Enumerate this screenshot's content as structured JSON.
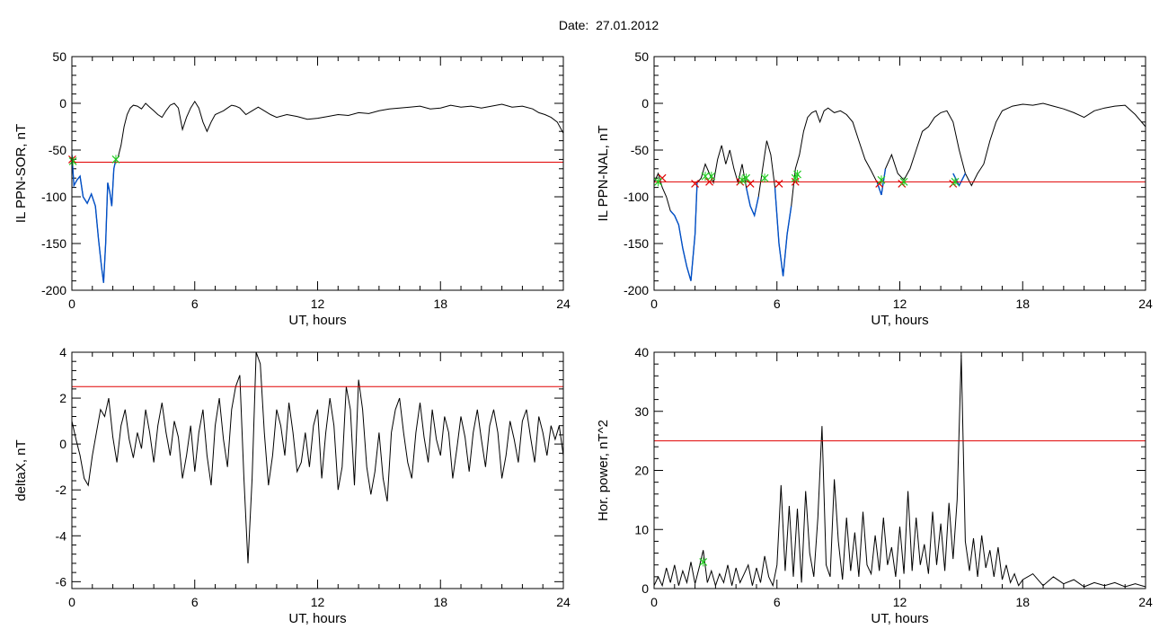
{
  "title": "Date:  27.01.2012",
  "chart_data": [
    {
      "type": "line",
      "title": "",
      "xlabel": "UT, hours",
      "ylabel": "IL PPN-SOR, nT",
      "xlim": [
        0,
        24
      ],
      "ylim": [
        -200,
        50
      ],
      "xticks": [
        0,
        6,
        12,
        18,
        24
      ],
      "yticks": [
        -200,
        -150,
        -100,
        -50,
        0,
        50
      ],
      "threshold": -63,
      "series": [
        {
          "color": "#000000",
          "x": [
            0,
            0.1,
            0.25,
            0.4,
            0.55,
            0.75,
            0.95,
            1.15,
            1.3,
            1.45,
            1.55,
            1.65,
            1.75,
            1.85,
            1.95,
            2.05,
            2.15,
            2.25,
            2.4,
            2.55,
            2.7,
            2.85,
            3.0,
            3.2,
            3.4,
            3.6,
            3.8,
            4.0,
            4.2,
            4.4,
            4.6,
            4.8,
            5.0,
            5.2,
            5.4,
            5.6,
            5.8,
            6.0,
            6.2,
            6.4,
            6.6,
            6.8,
            7.0,
            7.2,
            7.4,
            7.6,
            7.8,
            8.0,
            8.2,
            8.5,
            8.8,
            9.1,
            9.4,
            9.7,
            10.0,
            10.5,
            11.0,
            11.5,
            12.0,
            12.5,
            13.0,
            13.5,
            14.0,
            14.5,
            15.0,
            15.5,
            16.0,
            16.5,
            17.0,
            17.5,
            18.0,
            18.5,
            19.0,
            19.5,
            20.0,
            20.5,
            21.0,
            21.5,
            22.0,
            22.5,
            22.8,
            23.1,
            23.4,
            23.7,
            24.0
          ],
          "y": [
            -55,
            -88,
            -82,
            -78,
            -100,
            -107,
            -97,
            -110,
            -145,
            -175,
            -192,
            -150,
            -85,
            -95,
            -110,
            -70,
            -60,
            -58,
            -45,
            -25,
            -12,
            -5,
            -2,
            -3,
            -6,
            0,
            -4,
            -8,
            -12,
            -15,
            -8,
            -2,
            0,
            -5,
            -28,
            -15,
            -5,
            2,
            -5,
            -20,
            -30,
            -20,
            -12,
            -10,
            -8,
            -5,
            -2,
            -3,
            -5,
            -12,
            -8,
            -4,
            -8,
            -12,
            -15,
            -12,
            -14,
            -17,
            -16,
            -14,
            -12,
            -13,
            -10,
            -11,
            -8,
            -6,
            -5,
            -4,
            -3,
            -6,
            -5,
            -2,
            -4,
            -3,
            -5,
            -3,
            -1,
            -4,
            -3,
            -6,
            -10,
            -12,
            -15,
            -20,
            -32
          ]
        },
        {
          "color": "#0050c8",
          "x": [
            0,
            0.1,
            0.25,
            0.4,
            0.55,
            0.75,
            0.95,
            1.15,
            1.3,
            1.45,
            1.55,
            1.65,
            1.75,
            1.85,
            1.95,
            2.05,
            2.15
          ],
          "y": [
            -55,
            -88,
            -82,
            -78,
            -100,
            -107,
            -97,
            -110,
            -145,
            -175,
            -192,
            -150,
            -85,
            -95,
            -110,
            -70,
            -60
          ]
        }
      ],
      "markers_green": [
        [
          0.05,
          -62
        ],
        [
          2.15,
          -60
        ]
      ],
      "markers_red": [
        [
          0.02,
          -60
        ]
      ]
    },
    {
      "type": "line",
      "title": "",
      "xlabel": "UT, hours",
      "ylabel": "IL PPN-NAL, nT",
      "xlim": [
        0,
        24
      ],
      "ylim": [
        -200,
        50
      ],
      "xticks": [
        0,
        6,
        12,
        18,
        24
      ],
      "yticks": [
        -200,
        -150,
        -100,
        -50,
        0,
        50
      ],
      "threshold": -84,
      "series": [
        {
          "color": "#000000",
          "x": [
            0,
            0.2,
            0.4,
            0.6,
            0.8,
            1.0,
            1.2,
            1.4,
            1.6,
            1.8,
            1.9,
            2.0,
            2.1,
            2.3,
            2.5,
            2.7,
            2.9,
            3.1,
            3.3,
            3.5,
            3.7,
            3.9,
            4.1,
            4.3,
            4.5,
            4.7,
            4.9,
            5.1,
            5.3,
            5.5,
            5.7,
            5.9,
            6.1,
            6.3,
            6.5,
            6.7,
            6.9,
            7.1,
            7.3,
            7.5,
            7.7,
            7.9,
            8.1,
            8.3,
            8.5,
            8.8,
            9.1,
            9.4,
            9.7,
            10.0,
            10.3,
            10.6,
            10.9,
            11.1,
            11.3,
            11.6,
            11.9,
            12.2,
            12.5,
            12.8,
            13.1,
            13.4,
            13.7,
            14.0,
            14.3,
            14.6,
            14.9,
            15.2,
            15.5,
            15.8,
            16.1,
            16.4,
            16.7,
            17.0,
            17.5,
            18.0,
            18.5,
            19.0,
            19.5,
            20.0,
            20.5,
            21.0,
            21.5,
            22.0,
            22.5,
            23.0,
            23.5,
            24.0
          ],
          "y": [
            -85,
            -75,
            -90,
            -100,
            -115,
            -120,
            -130,
            -155,
            -175,
            -190,
            -165,
            -140,
            -85,
            -80,
            -65,
            -75,
            -85,
            -60,
            -45,
            -65,
            -50,
            -70,
            -85,
            -65,
            -90,
            -110,
            -120,
            -100,
            -70,
            -40,
            -55,
            -90,
            -150,
            -185,
            -140,
            -110,
            -70,
            -55,
            -30,
            -15,
            -10,
            -8,
            -20,
            -8,
            -5,
            -10,
            -8,
            -12,
            -20,
            -40,
            -60,
            -72,
            -85,
            -98,
            -70,
            -55,
            -75,
            -82,
            -70,
            -50,
            -30,
            -25,
            -15,
            -10,
            -8,
            -20,
            -50,
            -75,
            -88,
            -75,
            -65,
            -40,
            -20,
            -8,
            -3,
            -1,
            -2,
            0,
            -3,
            -6,
            -10,
            -15,
            -8,
            -5,
            -3,
            -2,
            -12,
            -25
          ]
        },
        {
          "color": "#0050c8",
          "x": [
            0.8,
            1.0,
            1.2,
            1.4,
            1.6,
            1.8,
            1.9,
            2.0,
            2.1
          ],
          "y": [
            -115,
            -120,
            -130,
            -155,
            -175,
            -190,
            -165,
            -140,
            -85
          ]
        },
        {
          "color": "#0050c8",
          "x": [
            4.5,
            4.7,
            4.9,
            5.1
          ],
          "y": [
            -90,
            -110,
            -120,
            -100
          ]
        },
        {
          "color": "#0050c8",
          "x": [
            5.9,
            6.1,
            6.3,
            6.5,
            6.7
          ],
          "y": [
            -90,
            -150,
            -185,
            -140,
            -110
          ]
        },
        {
          "color": "#0050c8",
          "x": [
            10.9,
            11.1,
            11.3
          ],
          "y": [
            -85,
            -98,
            -70
          ]
        },
        {
          "color": "#0050c8",
          "x": [
            14.6,
            14.9,
            15.2
          ],
          "y": [
            -75,
            -88,
            -75
          ]
        }
      ],
      "markers_green": [
        [
          0.2,
          -84
        ],
        [
          2.5,
          -78
        ],
        [
          2.8,
          -78
        ],
        [
          4.3,
          -82
        ],
        [
          4.5,
          -80
        ],
        [
          5.4,
          -80
        ],
        [
          6.9,
          -80
        ],
        [
          7.0,
          -76
        ],
        [
          11.1,
          -82
        ],
        [
          12.2,
          -84
        ],
        [
          14.7,
          -84
        ]
      ],
      "markers_red": [
        [
          0.4,
          -80
        ],
        [
          2.0,
          -86
        ],
        [
          2.7,
          -84
        ],
        [
          4.2,
          -84
        ],
        [
          4.7,
          -86
        ],
        [
          6.1,
          -86
        ],
        [
          6.9,
          -84
        ],
        [
          11.0,
          -86
        ],
        [
          12.1,
          -86
        ],
        [
          14.6,
          -86
        ]
      ]
    },
    {
      "type": "line",
      "title": "",
      "xlabel": "UT, hours",
      "ylabel": "deltaX, nT",
      "xlim": [
        0,
        24
      ],
      "ylim": [
        -6.3,
        4
      ],
      "xticks": [
        0,
        6,
        12,
        18,
        24
      ],
      "yticks": [
        -6,
        -4,
        -2,
        0,
        2,
        4
      ],
      "threshold": 2.5,
      "series": [
        {
          "color": "#000000",
          "x": [
            0,
            0.2,
            0.4,
            0.6,
            0.8,
            1.0,
            1.2,
            1.4,
            1.6,
            1.8,
            2.0,
            2.2,
            2.4,
            2.6,
            2.8,
            3.0,
            3.2,
            3.4,
            3.6,
            3.8,
            4.0,
            4.2,
            4.4,
            4.6,
            4.8,
            5.0,
            5.2,
            5.4,
            5.6,
            5.8,
            6.0,
            6.2,
            6.4,
            6.6,
            6.8,
            7.0,
            7.2,
            7.4,
            7.6,
            7.8,
            8.0,
            8.2,
            8.4,
            8.6,
            8.8,
            9.0,
            9.2,
            9.4,
            9.6,
            9.8,
            10.0,
            10.2,
            10.4,
            10.6,
            10.8,
            11.0,
            11.2,
            11.4,
            11.6,
            11.8,
            12.0,
            12.2,
            12.4,
            12.6,
            12.8,
            13.0,
            13.2,
            13.4,
            13.6,
            13.8,
            14.0,
            14.2,
            14.4,
            14.6,
            14.8,
            15.0,
            15.2,
            15.4,
            15.6,
            15.8,
            16.0,
            16.2,
            16.4,
            16.6,
            16.8,
            17.0,
            17.2,
            17.4,
            17.6,
            17.8,
            18.0,
            18.2,
            18.4,
            18.6,
            18.8,
            19.0,
            19.2,
            19.4,
            19.6,
            19.8,
            20.0,
            20.2,
            20.4,
            20.6,
            20.8,
            21.0,
            21.2,
            21.4,
            21.6,
            21.8,
            22.0,
            22.2,
            22.4,
            22.6,
            22.8,
            23.0,
            23.2,
            23.4,
            23.6,
            23.8,
            24.0
          ],
          "y": [
            1.0,
            0.2,
            -0.5,
            -1.5,
            -1.8,
            -0.5,
            0.5,
            1.5,
            1.2,
            2.0,
            0.3,
            -0.8,
            0.8,
            1.5,
            0.2,
            -0.6,
            0.5,
            -0.2,
            1.5,
            0.5,
            -0.8,
            0.8,
            1.8,
            0.5,
            -0.5,
            1.0,
            0.3,
            -1.5,
            -0.5,
            0.8,
            -1.2,
            0.5,
            1.5,
            -0.5,
            -1.8,
            0.8,
            2.0,
            0.2,
            -1.0,
            1.5,
            2.5,
            3.0,
            -1.5,
            -5.2,
            -1.5,
            4.0,
            3.5,
            0.5,
            -1.8,
            -0.5,
            1.5,
            0.8,
            -0.5,
            1.8,
            0.5,
            -1.2,
            -0.8,
            0.5,
            -1.0,
            0.8,
            1.5,
            -1.5,
            0.5,
            2.0,
            0.8,
            -2.0,
            -1.0,
            2.5,
            1.5,
            -1.8,
            2.8,
            1.5,
            -1.0,
            -2.2,
            -1.2,
            0.5,
            -1.5,
            -2.5,
            0.5,
            1.5,
            2.0,
            0.5,
            -0.8,
            -1.5,
            0.5,
            1.8,
            0.3,
            -0.8,
            1.5,
            0.2,
            -0.5,
            1.2,
            0.5,
            -1.5,
            -0.2,
            1.2,
            0.3,
            -1.2,
            0.5,
            1.5,
            0.2,
            -1.0,
            0.8,
            1.5,
            0.5,
            -1.5,
            -0.5,
            1.0,
            0.2,
            -0.8,
            1.0,
            1.5,
            0.3,
            -0.8,
            1.2,
            0.5,
            -0.5,
            0.8,
            0.2,
            0.8,
            -0.5
          ]
        }
      ],
      "markers_green": [],
      "markers_red": []
    },
    {
      "type": "line",
      "title": "",
      "xlabel": "UT, hours",
      "ylabel": "Hor. power, nT^2",
      "xlim": [
        0,
        24
      ],
      "ylim": [
        0,
        40
      ],
      "xticks": [
        0,
        6,
        12,
        18,
        24
      ],
      "yticks": [
        0,
        10,
        20,
        30,
        40
      ],
      "threshold": 25,
      "series": [
        {
          "color": "#000000",
          "x": [
            0,
            0.2,
            0.4,
            0.6,
            0.8,
            1.0,
            1.2,
            1.4,
            1.6,
            1.8,
            2.0,
            2.2,
            2.4,
            2.6,
            2.8,
            3.0,
            3.2,
            3.4,
            3.6,
            3.8,
            4.0,
            4.2,
            4.4,
            4.6,
            4.8,
            5.0,
            5.2,
            5.4,
            5.6,
            5.8,
            6.0,
            6.2,
            6.4,
            6.6,
            6.8,
            7.0,
            7.2,
            7.4,
            7.6,
            7.8,
            8.0,
            8.2,
            8.4,
            8.6,
            8.8,
            9.0,
            9.2,
            9.4,
            9.6,
            9.8,
            10.0,
            10.2,
            10.4,
            10.6,
            10.8,
            11.0,
            11.2,
            11.4,
            11.6,
            11.8,
            12.0,
            12.2,
            12.4,
            12.6,
            12.8,
            13.0,
            13.2,
            13.4,
            13.6,
            13.8,
            14.0,
            14.2,
            14.4,
            14.6,
            14.8,
            15.0,
            15.2,
            15.4,
            15.6,
            15.8,
            16.0,
            16.2,
            16.4,
            16.6,
            16.8,
            17.0,
            17.2,
            17.4,
            17.6,
            17.8,
            18.0,
            18.5,
            19.0,
            19.5,
            20.0,
            20.5,
            21.0,
            21.5,
            22.0,
            22.5,
            23.0,
            23.5,
            24.0
          ],
          "y": [
            0.5,
            2.0,
            0.5,
            3.5,
            1.0,
            4.0,
            0.5,
            3.0,
            1.0,
            4.5,
            0.8,
            3.5,
            6.5,
            1.0,
            3.0,
            0.5,
            2.5,
            1.0,
            4.0,
            0.5,
            3.5,
            1.0,
            2.5,
            4.0,
            0.5,
            3.5,
            1.0,
            5.5,
            2.0,
            0.5,
            4.0,
            17.5,
            3.0,
            14.0,
            2.0,
            13.5,
            1.0,
            16.5,
            6.0,
            2.0,
            12.0,
            27.5,
            4.0,
            2.0,
            18.5,
            8.0,
            1.5,
            12.0,
            3.0,
            9.5,
            2.0,
            13.0,
            4.0,
            2.5,
            9.0,
            3.0,
            12.0,
            4.0,
            7.0,
            2.0,
            10.5,
            2.5,
            16.5,
            3.0,
            12.0,
            4.0,
            7.5,
            2.5,
            13.0,
            4.0,
            11.0,
            3.0,
            14.5,
            5.0,
            15.0,
            39.5,
            8.0,
            3.0,
            8.5,
            2.0,
            9.0,
            3.5,
            6.5,
            2.0,
            7.0,
            1.5,
            4.0,
            1.0,
            2.5,
            0.5,
            1.5,
            2.5,
            0.5,
            2.0,
            0.8,
            1.5,
            0.3,
            1.0,
            0.5,
            1.0,
            0.3,
            0.8,
            0.3
          ]
        }
      ],
      "markers_green": [
        [
          2.4,
          4.5
        ]
      ],
      "markers_red": []
    }
  ]
}
